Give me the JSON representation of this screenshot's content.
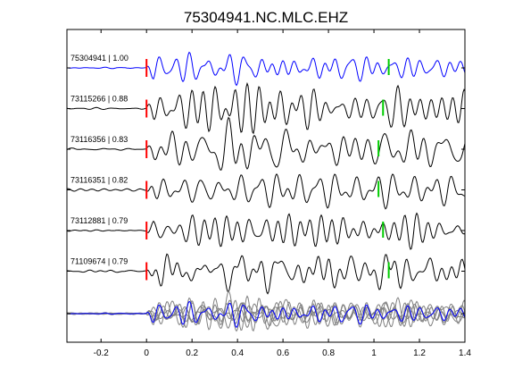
{
  "chart_data": {
    "type": "line",
    "title": "75304941.NC.MLC.EHZ",
    "xlabel": "",
    "ylabel": "",
    "xlim": [
      -0.35,
      1.4
    ],
    "xticks": [
      -0.2,
      0,
      0.2,
      0.4,
      0.6,
      0.8,
      1,
      1.2,
      1.4
    ],
    "xtick_labels": [
      "-0.2",
      "0",
      "0.2",
      "0.4",
      "0.6",
      "0.8",
      "1",
      "1.2",
      "1.4"
    ],
    "grid": false,
    "legend": "none",
    "colors": {
      "reference": "#0000ff",
      "trace": "#000000",
      "stack": "#808080",
      "p_pick": "#ff0000",
      "s_pick": "#00cc00"
    },
    "series": [
      {
        "name": "75304941 | 1.00",
        "reference": true,
        "p_pick": 0,
        "s_pick": 1.065
      },
      {
        "name": "73115266 | 0.88",
        "reference": false,
        "p_pick": 0,
        "s_pick": 1.04
      },
      {
        "name": "73116356 | 0.83",
        "reference": false,
        "p_pick": 0,
        "s_pick": 1.02
      },
      {
        "name": "73116351 | 0.82",
        "reference": false,
        "p_pick": 0,
        "s_pick": 1.02
      },
      {
        "name": "73112881 | 0.79",
        "reference": false,
        "p_pick": 0,
        "s_pick": 1.04
      },
      {
        "name": "71109674 | 0.79",
        "reference": false,
        "p_pick": 0,
        "s_pick": 1.065
      }
    ],
    "stack_row": true
  }
}
